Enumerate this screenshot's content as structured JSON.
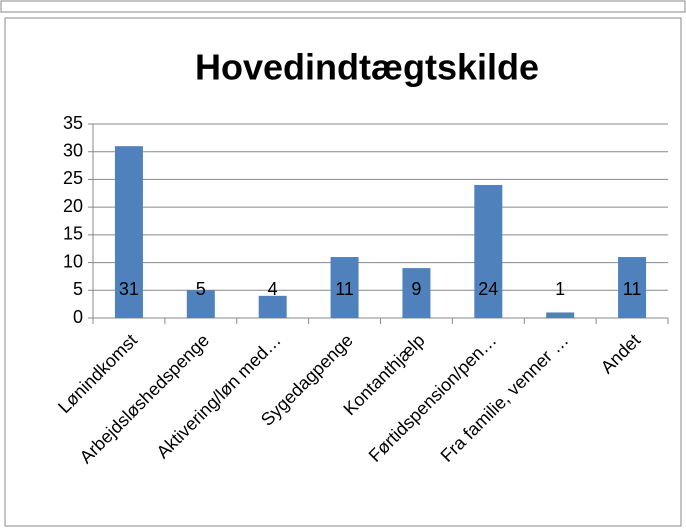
{
  "chart_data": {
    "type": "bar",
    "title": "Hovedindtægtskilde",
    "categories": [
      "Lønindkomst",
      "Arbejdsløshedspenge",
      "Aktivering/løn med…",
      "Sygedagpenge",
      "Kontanthjælp",
      "Førtidspension/pen…",
      "Fra familie, venner …",
      "Andet"
    ],
    "values": [
      31,
      5,
      4,
      11,
      9,
      24,
      1,
      11
    ],
    "color": "#4f81bd",
    "ylim": [
      0,
      35
    ],
    "yticks": [
      0,
      5,
      10,
      15,
      20,
      25,
      30,
      35
    ],
    "grid": true
  }
}
